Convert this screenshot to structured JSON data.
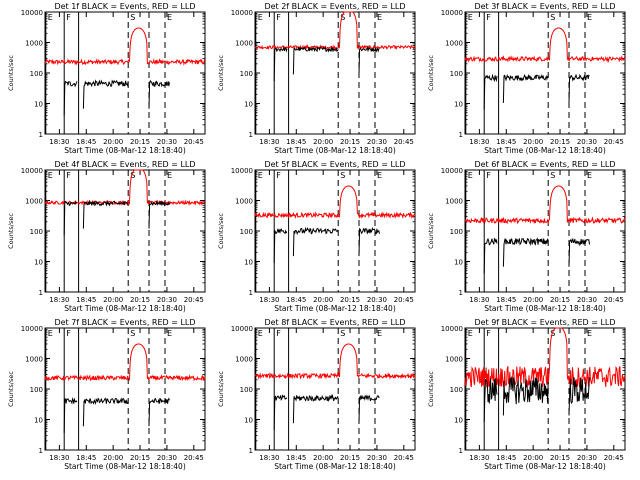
{
  "chart_data": {
    "type": "line",
    "yscale": "log",
    "ylim": [
      1,
      10000
    ],
    "yticks": [
      "1",
      "10",
      "100",
      "1000",
      "10000"
    ],
    "xticks": [
      "18:30",
      "18:45",
      "20:00",
      "20:15",
      "20:30",
      "20:45"
    ],
    "xlabel": "Start Time (08-Mar-12 18:18:40)",
    "ylabel": "Counts/sec",
    "grid": false,
    "colors": {
      "events": "#000000",
      "lld": "#ff0000"
    },
    "panels": [
      {
        "title": "Det 1f BLACK = Events, RED = LLD",
        "red_base": 230,
        "black_base": 45,
        "red_peak": 3000,
        "noise": 0.07
      },
      {
        "title": "Det 2f BLACK = Events, RED = LLD",
        "red_base": 700,
        "black_base": 600,
        "red_peak": 12000,
        "noise": 0.05
      },
      {
        "title": "Det 3f BLACK = Events, RED = LLD",
        "red_base": 290,
        "black_base": 70,
        "red_peak": 3000,
        "noise": 0.07
      },
      {
        "title": "Det 4f BLACK = Events, RED = LLD",
        "red_base": 850,
        "black_base": 800,
        "red_peak": 12000,
        "noise": 0.05
      },
      {
        "title": "Det 5f BLACK = Events, RED = LLD",
        "red_base": 330,
        "black_base": 100,
        "red_peak": 3000,
        "noise": 0.07
      },
      {
        "title": "Det 6f BLACK = Events, RED = LLD",
        "red_base": 220,
        "black_base": 45,
        "red_peak": 3000,
        "noise": 0.08
      },
      {
        "title": "Det 7f BLACK = Events, RED = LLD",
        "red_base": 230,
        "black_base": 40,
        "red_peak": 3000,
        "noise": 0.07
      },
      {
        "title": "Det 8f BLACK = Events, RED = LLD",
        "red_base": 270,
        "black_base": 50,
        "red_peak": 3000,
        "noise": 0.07
      },
      {
        "title": "Det 9f BLACK = Events, RED = LLD",
        "red_base": 250,
        "black_base": 90,
        "red_peak": 11000,
        "noise": 0.35
      }
    ],
    "markers": [
      {
        "label": "E",
        "t": 0.0,
        "style": "solid"
      },
      {
        "label": "F",
        "t": 0.12,
        "style": "solid"
      },
      {
        "label": "",
        "t": 0.21,
        "style": "solid"
      },
      {
        "label": "S",
        "t": 0.52,
        "style": "dashed"
      },
      {
        "label": "",
        "t": 0.65,
        "style": "dashed"
      },
      {
        "label": "E",
        "t": 0.75,
        "style": "dashed"
      }
    ]
  }
}
